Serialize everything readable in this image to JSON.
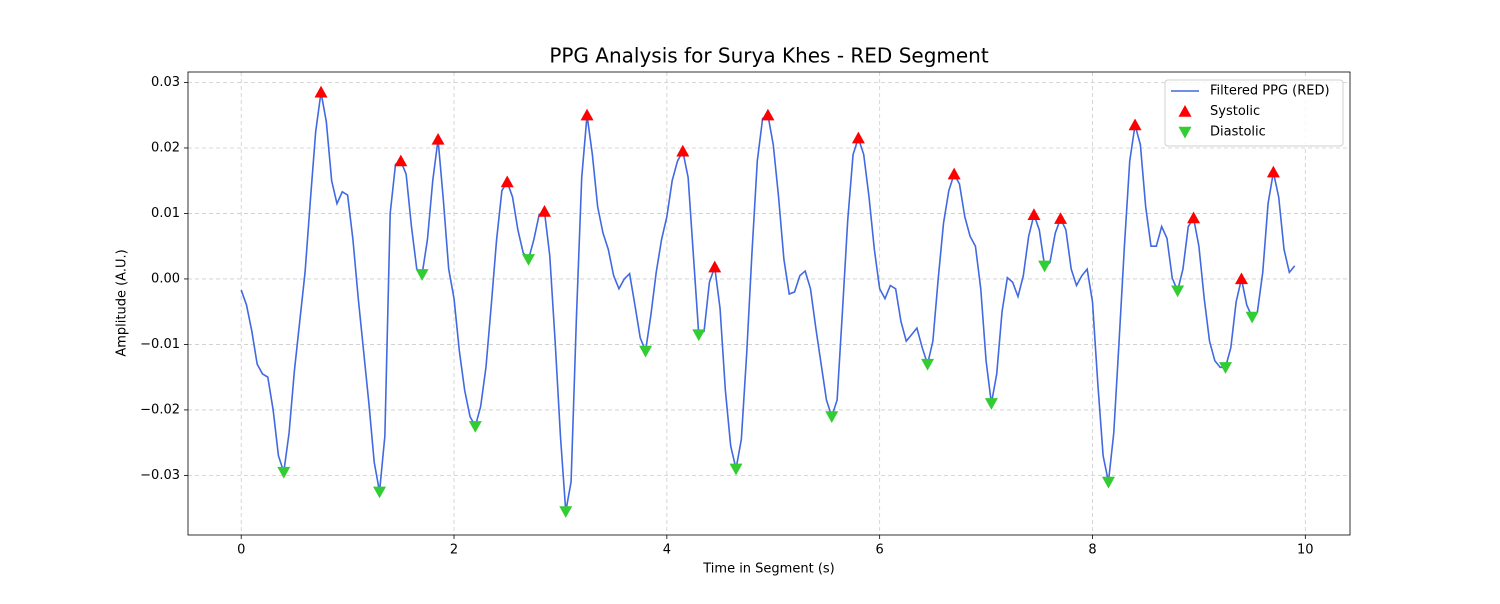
{
  "chart_data": {
    "type": "line",
    "title": "PPG Analysis for Surya Khes - RED Segment",
    "xlabel": "Time in Segment (s)",
    "ylabel": "Amplitude (A.U.)",
    "xlim": [
      -0.5,
      10.42
    ],
    "ylim": [
      -0.0391,
      0.0316
    ],
    "xticks": [
      0,
      2,
      4,
      6,
      8,
      10
    ],
    "yticks": [
      {
        "value": -0.03,
        "label": "−0.03"
      },
      {
        "value": -0.02,
        "label": "−0.02"
      },
      {
        "value": -0.01,
        "label": "−0.01"
      },
      {
        "value": 0,
        "label": "0.00"
      },
      {
        "value": 0.01,
        "label": "0.01"
      },
      {
        "value": 0.02,
        "label": "0.02"
      },
      {
        "value": 0.03,
        "label": "0.03"
      }
    ],
    "grid": true,
    "legend": "upper right",
    "series": [
      {
        "name": "Filtered PPG (RED)",
        "color": "#4169e1",
        "marker": "none",
        "x": [
          0,
          0.05,
          0.1,
          0.15,
          0.2,
          0.25,
          0.3,
          0.35,
          0.4,
          0.45,
          0.5,
          0.55,
          0.6,
          0.65,
          0.7,
          0.75,
          0.8,
          0.85,
          0.9,
          0.95,
          1,
          1.05,
          1.1,
          1.15,
          1.2,
          1.25,
          1.3,
          1.35,
          1.4,
          1.45,
          1.5,
          1.55,
          1.6,
          1.65,
          1.7,
          1.75,
          1.8,
          1.85,
          1.9,
          1.95,
          2,
          2.05,
          2.1,
          2.15,
          2.2,
          2.25,
          2.3,
          2.35,
          2.4,
          2.45,
          2.5,
          2.55,
          2.6,
          2.65,
          2.7,
          2.75,
          2.8,
          2.85,
          2.9,
          2.95,
          3,
          3.05,
          3.1,
          3.15,
          3.2,
          3.25,
          3.3,
          3.35,
          3.4,
          3.45,
          3.5,
          3.55,
          3.6,
          3.65,
          3.7,
          3.75,
          3.8,
          3.85,
          3.9,
          3.95,
          4,
          4.05,
          4.1,
          4.15,
          4.2,
          4.25,
          4.3,
          4.35,
          4.4,
          4.45,
          4.5,
          4.55,
          4.6,
          4.65,
          4.7,
          4.75,
          4.8,
          4.85,
          4.9,
          4.95,
          5,
          5.05,
          5.1,
          5.15,
          5.2,
          5.25,
          5.3,
          5.35,
          5.4,
          5.45,
          5.5,
          5.55,
          5.6,
          5.65,
          5.7,
          5.75,
          5.8,
          5.85,
          5.9,
          5.95,
          6,
          6.05,
          6.1,
          6.15,
          6.2,
          6.25,
          6.3,
          6.35,
          6.4,
          6.45,
          6.5,
          6.55,
          6.6,
          6.65,
          6.7,
          6.75,
          6.8,
          6.85,
          6.9,
          6.95,
          7,
          7.05,
          7.1,
          7.15,
          7.2,
          7.25,
          7.3,
          7.35,
          7.4,
          7.45,
          7.5,
          7.55,
          7.6,
          7.65,
          7.7,
          7.75,
          7.8,
          7.85,
          7.9,
          7.95,
          8,
          8.05,
          8.1,
          8.15,
          8.2,
          8.25,
          8.3,
          8.35,
          8.4,
          8.45,
          8.5,
          8.55,
          8.6,
          8.65,
          8.7,
          8.75,
          8.8,
          8.85,
          8.9,
          8.95,
          9,
          9.05,
          9.1,
          9.15,
          9.2,
          9.25,
          9.3,
          9.35,
          9.4,
          9.45,
          9.5,
          9.55,
          9.6,
          9.65,
          9.7,
          9.75,
          9.8,
          9.85,
          9.9
        ],
        "values": [
          -0.0017,
          -0.004,
          -0.008,
          -0.013,
          -0.0145,
          -0.015,
          -0.02,
          -0.027,
          -0.0295,
          -0.0235,
          -0.014,
          -0.0065,
          0.001,
          0.012,
          0.0225,
          0.0285,
          0.024,
          0.015,
          0.0115,
          0.0133,
          0.0128,
          0.006,
          -0.003,
          -0.011,
          -0.019,
          -0.028,
          -0.0325,
          -0.024,
          0.01,
          0.0175,
          0.018,
          0.016,
          0.008,
          0.0015,
          0.0007,
          0.006,
          0.015,
          0.0213,
          0.012,
          0.0015,
          -0.003,
          -0.011,
          -0.017,
          -0.021,
          -0.0225,
          -0.0195,
          -0.0135,
          -0.004,
          0.006,
          0.0135,
          0.0148,
          0.0125,
          0.0075,
          0.004,
          0.003,
          0.006,
          0.0098,
          0.0103,
          0.0035,
          -0.0095,
          -0.024,
          -0.0355,
          -0.031,
          -0.006,
          0.0155,
          0.025,
          0.019,
          0.011,
          0.007,
          0.0045,
          0.0005,
          -0.0015,
          0,
          0.0008,
          -0.004,
          -0.009,
          -0.011,
          -0.0055,
          0.001,
          0.006,
          0.0095,
          0.015,
          0.018,
          0.0195,
          0.0155,
          0.0035,
          -0.0085,
          -0.008,
          -0.0005,
          0.0018,
          -0.0045,
          -0.017,
          -0.0255,
          -0.029,
          -0.0245,
          -0.0115,
          0.004,
          0.018,
          0.0245,
          0.025,
          0.0205,
          0.0125,
          0.003,
          -0.0023,
          -0.002,
          0.0005,
          0.0012,
          -0.0015,
          -0.0075,
          -0.013,
          -0.0185,
          -0.021,
          -0.0185,
          -0.005,
          0.009,
          0.019,
          0.0215,
          0.019,
          0.0125,
          0.0045,
          -0.0015,
          -0.003,
          -0.001,
          -0.0015,
          -0.0065,
          -0.0095,
          -0.0085,
          -0.0075,
          -0.0105,
          -0.013,
          -0.0095,
          0,
          0.0085,
          0.0135,
          0.016,
          0.0145,
          0.0095,
          0.0065,
          0.005,
          -0.0015,
          -0.0125,
          -0.019,
          -0.0145,
          -0.005,
          0.0002,
          -0.0005,
          -0.0027,
          0.0005,
          0.0065,
          0.0098,
          0.0075,
          0.002,
          0.0025,
          0.007,
          0.0092,
          0.0075,
          0.0015,
          -0.001,
          0.0005,
          0.0015,
          -0.0035,
          -0.016,
          -0.027,
          -0.031,
          -0.0235,
          -0.0095,
          0.005,
          0.018,
          0.0235,
          0.0205,
          0.011,
          0.005,
          0.005,
          0.008,
          0.0062,
          0.0001,
          -0.0018,
          0.0015,
          0.008,
          0.0093,
          0.005,
          -0.003,
          -0.0095,
          -0.0125,
          -0.0135,
          -0.0135,
          -0.0105,
          -0.0035,
          0,
          -0.004,
          -0.0058,
          -0.005,
          0.001,
          0.0115,
          0.0163,
          0.0125,
          0.0045,
          0.001,
          0.002
        ]
      },
      {
        "name": "Systolic",
        "color": "#ff0000",
        "marker": "triangle-up",
        "x": [
          0.75,
          1.5,
          1.85,
          2.5,
          2.85,
          3.25,
          4.15,
          4.45,
          4.95,
          5.8,
          6.7,
          7.45,
          7.7,
          8.4,
          8.95,
          9.4,
          9.7
        ],
        "values": [
          0.0285,
          0.018,
          0.0213,
          0.0148,
          0.0103,
          0.025,
          0.0195,
          0.0018,
          0.025,
          0.0215,
          0.016,
          0.0098,
          0.0092,
          0.0235,
          0.0093,
          0,
          0.0163
        ]
      },
      {
        "name": "Diastolic",
        "color": "#32cd32",
        "marker": "triangle-down",
        "x": [
          0.4,
          1.3,
          1.7,
          2.2,
          2.7,
          3.05,
          3.8,
          4.3,
          4.65,
          5.55,
          6.45,
          7.05,
          7.55,
          8.15,
          8.8,
          9.25,
          9.5
        ],
        "values": [
          -0.0295,
          -0.0325,
          0.0007,
          -0.0225,
          0.003,
          -0.0355,
          -0.011,
          -0.0085,
          -0.029,
          -0.021,
          -0.013,
          -0.019,
          0.002,
          -0.031,
          -0.0018,
          -0.0135,
          -0.0058
        ]
      }
    ]
  }
}
